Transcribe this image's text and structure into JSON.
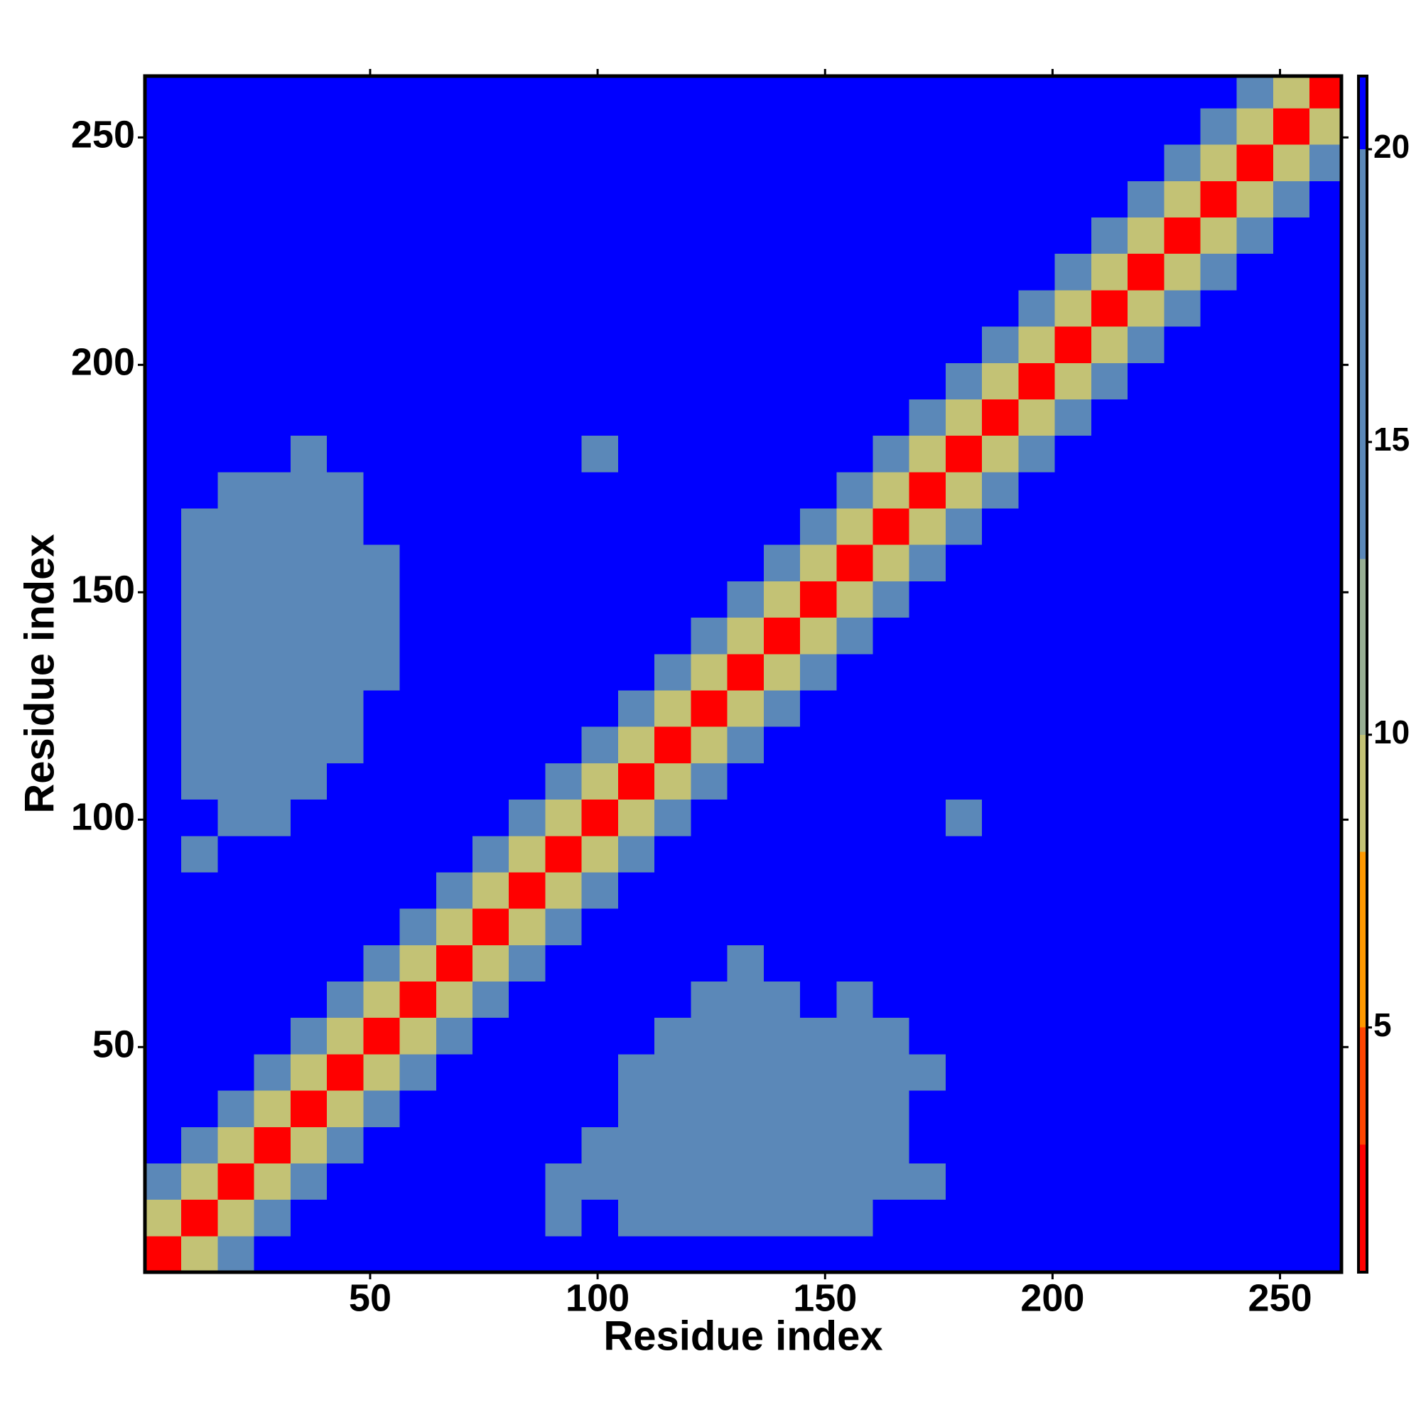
{
  "chart_data": {
    "type": "heatmap",
    "xlabel": "Residue index",
    "ylabel": "Residue index",
    "xlim": [
      0.5,
      263.5
    ],
    "ylim": [
      0.5,
      263.5
    ],
    "xticks": [
      50,
      100,
      150,
      200,
      250
    ],
    "yticks": [
      50,
      100,
      150,
      200,
      250
    ],
    "edges": [
      0.5,
      8.5,
      16.5,
      24.5,
      32.5,
      40.5,
      48.5,
      56.5,
      64.5,
      72.5,
      80.5,
      88.5,
      96.5,
      104.5,
      112.5,
      120.5,
      128.5,
      136.5,
      144.5,
      152.5,
      160.5,
      168.5,
      176.5,
      184.5,
      192.5,
      200.5,
      208.5,
      216.5,
      224.5,
      232.5,
      240.5,
      248.5,
      256.5,
      263.5
    ],
    "z": [
      [
        2,
        9,
        16,
        21,
        21,
        21,
        21,
        21,
        21,
        21,
        21,
        21,
        21,
        21,
        21,
        21,
        21,
        21,
        21,
        21,
        21,
        21,
        21,
        21,
        21,
        21,
        21,
        21,
        21,
        21,
        21,
        21,
        21
      ],
      [
        9,
        2,
        9,
        16,
        21,
        21,
        21,
        21,
        21,
        21,
        21,
        19,
        21,
        19,
        19,
        19,
        19,
        19,
        19,
        19,
        21,
        21,
        21,
        21,
        21,
        21,
        21,
        21,
        21,
        21,
        21,
        21,
        21
      ],
      [
        16,
        9,
        2,
        9,
        16,
        21,
        21,
        21,
        21,
        21,
        21,
        19,
        17,
        17,
        19,
        17,
        17,
        19,
        17,
        17,
        19,
        19,
        21,
        21,
        21,
        21,
        21,
        21,
        21,
        21,
        21,
        21,
        21
      ],
      [
        21,
        16,
        9,
        2,
        9,
        16,
        21,
        21,
        21,
        21,
        21,
        21,
        19,
        19,
        19,
        17,
        19,
        19,
        19,
        17,
        19,
        21,
        21,
        21,
        21,
        21,
        21,
        21,
        21,
        21,
        21,
        21,
        21
      ],
      [
        21,
        21,
        16,
        9,
        2,
        9,
        16,
        21,
        21,
        21,
        21,
        21,
        21,
        19,
        17,
        19,
        19,
        17,
        19,
        17,
        19,
        21,
        21,
        21,
        21,
        21,
        21,
        21,
        21,
        21,
        21,
        21,
        21
      ],
      [
        21,
        21,
        21,
        16,
        9,
        2,
        9,
        16,
        21,
        21,
        21,
        21,
        21,
        19,
        17,
        19,
        17,
        19,
        19,
        17,
        19,
        19,
        21,
        21,
        21,
        21,
        21,
        21,
        21,
        21,
        21,
        21,
        21
      ],
      [
        21,
        21,
        21,
        21,
        16,
        9,
        2,
        9,
        16,
        21,
        21,
        21,
        21,
        21,
        19,
        17,
        19,
        19,
        19,
        17,
        19,
        21,
        21,
        21,
        21,
        21,
        21,
        21,
        21,
        21,
        21,
        21,
        21
      ],
      [
        21,
        21,
        21,
        21,
        21,
        16,
        9,
        2,
        9,
        16,
        21,
        21,
        21,
        21,
        21,
        19,
        17,
        19,
        21,
        19,
        21,
        21,
        21,
        21,
        21,
        21,
        21,
        21,
        21,
        21,
        21,
        21,
        21
      ],
      [
        21,
        21,
        21,
        21,
        21,
        21,
        16,
        9,
        2,
        9,
        16,
        21,
        21,
        21,
        21,
        21,
        19,
        21,
        21,
        21,
        21,
        21,
        21,
        21,
        21,
        21,
        21,
        21,
        21,
        21,
        21,
        21,
        21
      ],
      [
        21,
        21,
        21,
        21,
        21,
        21,
        21,
        16,
        9,
        2,
        9,
        16,
        21,
        21,
        21,
        21,
        21,
        21,
        21,
        21,
        21,
        21,
        21,
        21,
        21,
        21,
        21,
        21,
        21,
        21,
        21,
        21,
        21
      ],
      [
        21,
        21,
        21,
        21,
        21,
        21,
        21,
        21,
        16,
        9,
        2,
        9,
        16,
        21,
        21,
        21,
        21,
        21,
        21,
        21,
        21,
        21,
        21,
        21,
        21,
        21,
        21,
        21,
        21,
        21,
        21,
        21,
        21
      ],
      [
        21,
        19,
        21,
        21,
        21,
        21,
        21,
        21,
        21,
        16,
        9,
        2,
        9,
        16,
        21,
        21,
        21,
        21,
        21,
        21,
        21,
        21,
        21,
        21,
        21,
        21,
        21,
        21,
        21,
        21,
        21,
        21,
        21
      ],
      [
        21,
        21,
        19,
        19,
        21,
        21,
        21,
        21,
        21,
        21,
        16,
        9,
        2,
        9,
        16,
        21,
        21,
        21,
        21,
        21,
        21,
        21,
        19,
        21,
        21,
        21,
        21,
        21,
        21,
        21,
        21,
        21,
        21
      ],
      [
        21,
        19,
        19,
        17,
        19,
        21,
        21,
        21,
        21,
        21,
        21,
        16,
        9,
        2,
        9,
        16,
        21,
        21,
        21,
        21,
        21,
        21,
        21,
        21,
        21,
        21,
        21,
        21,
        21,
        21,
        21,
        21,
        21
      ],
      [
        21,
        19,
        17,
        17,
        17,
        19,
        21,
        21,
        21,
        21,
        21,
        21,
        16,
        9,
        2,
        9,
        16,
        21,
        21,
        21,
        21,
        21,
        21,
        21,
        21,
        21,
        21,
        21,
        21,
        21,
        21,
        21,
        21
      ],
      [
        21,
        19,
        17,
        19,
        19,
        19,
        21,
        21,
        21,
        21,
        21,
        21,
        21,
        16,
        9,
        2,
        9,
        16,
        21,
        21,
        21,
        21,
        21,
        21,
        21,
        21,
        21,
        21,
        21,
        21,
        21,
        21,
        21
      ],
      [
        21,
        17,
        17,
        19,
        19,
        19,
        19,
        21,
        21,
        21,
        21,
        21,
        21,
        21,
        16,
        9,
        2,
        9,
        16,
        21,
        21,
        21,
        21,
        21,
        21,
        21,
        21,
        21,
        21,
        21,
        21,
        21,
        21
      ],
      [
        21,
        17,
        17,
        19,
        19,
        19,
        19,
        21,
        21,
        21,
        21,
        21,
        21,
        21,
        21,
        16,
        9,
        2,
        9,
        16,
        21,
        21,
        21,
        21,
        21,
        21,
        21,
        21,
        21,
        21,
        21,
        21,
        21
      ],
      [
        21,
        19,
        17,
        19,
        19,
        19,
        19,
        21,
        21,
        21,
        21,
        21,
        21,
        21,
        21,
        21,
        16,
        9,
        2,
        9,
        16,
        21,
        21,
        21,
        21,
        21,
        21,
        21,
        21,
        21,
        21,
        21,
        21
      ],
      [
        21,
        19,
        19,
        19,
        17,
        17,
        19,
        21,
        21,
        21,
        21,
        21,
        21,
        21,
        21,
        21,
        21,
        16,
        9,
        2,
        9,
        16,
        21,
        21,
        21,
        21,
        21,
        21,
        21,
        21,
        21,
        21,
        21
      ],
      [
        21,
        19,
        17,
        19,
        17,
        19,
        21,
        21,
        21,
        21,
        21,
        21,
        21,
        21,
        21,
        21,
        21,
        21,
        16,
        9,
        2,
        9,
        16,
        21,
        21,
        21,
        21,
        21,
        21,
        21,
        21,
        21,
        21
      ],
      [
        21,
        21,
        19,
        19,
        17,
        19,
        21,
        21,
        21,
        21,
        21,
        21,
        21,
        21,
        21,
        21,
        21,
        21,
        21,
        16,
        9,
        2,
        9,
        16,
        21,
        21,
        21,
        21,
        21,
        21,
        21,
        21,
        21
      ],
      [
        21,
        21,
        21,
        21,
        19,
        21,
        21,
        21,
        21,
        21,
        21,
        21,
        19,
        21,
        21,
        21,
        21,
        21,
        21,
        21,
        16,
        9,
        2,
        9,
        16,
        21,
        21,
        21,
        21,
        21,
        21,
        21,
        21
      ],
      [
        21,
        21,
        21,
        21,
        21,
        21,
        21,
        21,
        21,
        21,
        21,
        21,
        21,
        21,
        21,
        21,
        21,
        21,
        21,
        21,
        21,
        16,
        9,
        2,
        9,
        16,
        21,
        21,
        21,
        21,
        21,
        21,
        21
      ],
      [
        21,
        21,
        21,
        21,
        21,
        21,
        21,
        21,
        21,
        21,
        21,
        21,
        21,
        21,
        21,
        21,
        21,
        21,
        21,
        21,
        21,
        21,
        16,
        9,
        2,
        9,
        16,
        21,
        21,
        21,
        21,
        21,
        21
      ],
      [
        21,
        21,
        21,
        21,
        21,
        21,
        21,
        21,
        21,
        21,
        21,
        21,
        21,
        21,
        21,
        21,
        21,
        21,
        21,
        21,
        21,
        21,
        21,
        16,
        9,
        2,
        9,
        16,
        21,
        21,
        21,
        21,
        21
      ],
      [
        21,
        21,
        21,
        21,
        21,
        21,
        21,
        21,
        21,
        21,
        21,
        21,
        21,
        21,
        21,
        21,
        21,
        21,
        21,
        21,
        21,
        21,
        21,
        21,
        16,
        9,
        2,
        9,
        16,
        21,
        21,
        21,
        21
      ],
      [
        21,
        21,
        21,
        21,
        21,
        21,
        21,
        21,
        21,
        21,
        21,
        21,
        21,
        21,
        21,
        21,
        21,
        21,
        21,
        21,
        21,
        21,
        21,
        21,
        21,
        16,
        9,
        2,
        9,
        16,
        21,
        21,
        21
      ],
      [
        21,
        21,
        21,
        21,
        21,
        21,
        21,
        21,
        21,
        21,
        21,
        21,
        21,
        21,
        21,
        21,
        21,
        21,
        21,
        21,
        21,
        21,
        21,
        21,
        21,
        21,
        16,
        9,
        2,
        9,
        16,
        21,
        21
      ],
      [
        21,
        21,
        21,
        21,
        21,
        21,
        21,
        21,
        21,
        21,
        21,
        21,
        21,
        21,
        21,
        21,
        21,
        21,
        21,
        21,
        21,
        21,
        21,
        21,
        21,
        21,
        21,
        16,
        9,
        2,
        9,
        16,
        21
      ],
      [
        21,
        21,
        21,
        21,
        21,
        21,
        21,
        21,
        21,
        21,
        21,
        21,
        21,
        21,
        21,
        21,
        21,
        21,
        21,
        21,
        21,
        21,
        21,
        21,
        21,
        21,
        21,
        21,
        16,
        9,
        2,
        9,
        16
      ],
      [
        21,
        21,
        21,
        21,
        21,
        21,
        21,
        21,
        21,
        21,
        21,
        21,
        21,
        21,
        21,
        21,
        21,
        21,
        21,
        21,
        21,
        21,
        21,
        21,
        21,
        21,
        21,
        21,
        21,
        16,
        9,
        2,
        9
      ],
      [
        21,
        21,
        21,
        21,
        21,
        21,
        21,
        21,
        21,
        21,
        21,
        21,
        21,
        21,
        21,
        21,
        21,
        21,
        21,
        21,
        21,
        21,
        21,
        21,
        21,
        21,
        21,
        21,
        21,
        21,
        16,
        9,
        2
      ]
    ],
    "colorbar": {
      "lim": [
        0.82,
        21.25
      ],
      "ticks": [
        5,
        10,
        15,
        20
      ],
      "levels": [
        3,
        5,
        8,
        10,
        13,
        20
      ],
      "colors": [
        "#ff0000",
        "#ff4500",
        "#ff9900",
        "#c3c275",
        "#97ae93",
        "#5b88b8",
        "#0000ff"
      ]
    }
  }
}
